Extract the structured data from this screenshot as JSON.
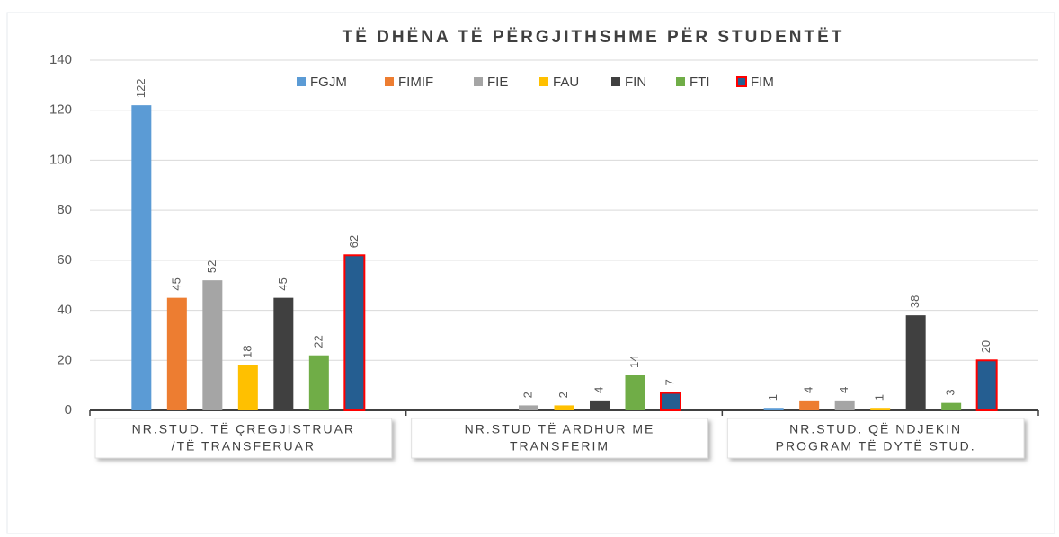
{
  "chart_data": {
    "type": "bar",
    "title": "TË DHËNA TË PËRGJITHSHME PËR STUDENTËT",
    "categories": [
      [
        "NR.STUD. TË ÇREGJISTRUAR",
        "/TË TRANSFERUAR"
      ],
      [
        "NR.STUD TË ARDHUR ME",
        "TRANSFERIM"
      ],
      [
        "NR.STUD. QË NDJEKIN",
        "PROGRAM TË DYTË STUD."
      ]
    ],
    "series": [
      {
        "name": "FGJM",
        "color": "#5b9bd5",
        "values": [
          122,
          null,
          1
        ]
      },
      {
        "name": "FIMIF",
        "color": "#ed7d31",
        "values": [
          45,
          null,
          4
        ]
      },
      {
        "name": "FIE",
        "color": "#a5a5a5",
        "values": [
          52,
          2,
          4
        ]
      },
      {
        "name": "FAU",
        "color": "#ffc000",
        "values": [
          18,
          2,
          1
        ]
      },
      {
        "name": "FIN",
        "color": "#404040",
        "values": [
          45,
          4,
          38
        ]
      },
      {
        "name": "FTI",
        "color": "#70ad47",
        "values": [
          22,
          14,
          3
        ]
      },
      {
        "name": "FIM",
        "color": "#255e91",
        "edgecolor": "#ff0000",
        "values": [
          62,
          7,
          20
        ]
      }
    ],
    "ylim": [
      0,
      140
    ],
    "yticks": [
      0,
      20,
      40,
      60,
      80,
      100,
      120,
      140
    ],
    "grid": true,
    "legend": "top"
  }
}
